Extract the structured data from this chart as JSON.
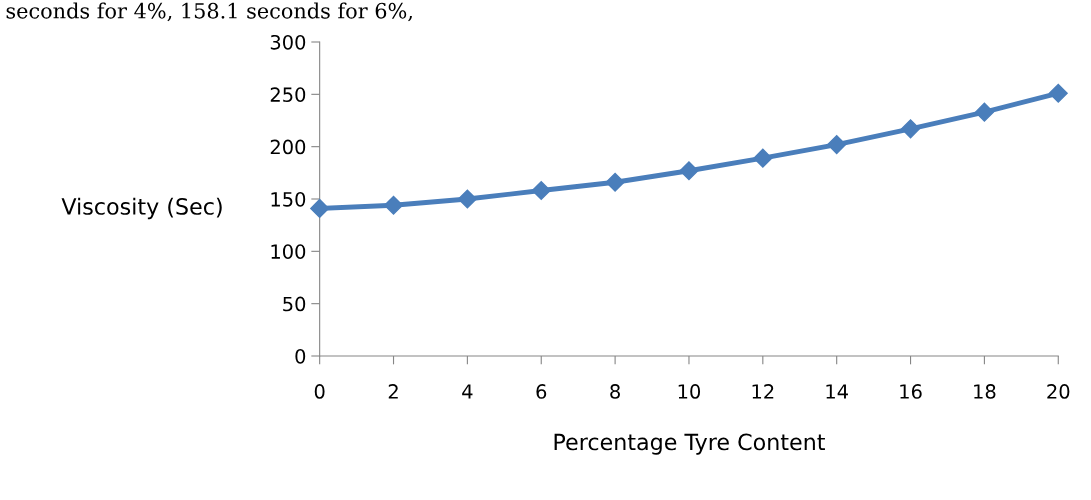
{
  "chart_data": {
    "type": "line",
    "xlabel": "Percentage Tyre Content",
    "ylabel": "Viscosity (Sec)",
    "annotations": [
      "seconds for 4%, 158.1 seconds for 6%,"
    ],
    "x": [
      0,
      2,
      4,
      6,
      8,
      10,
      12,
      14,
      16,
      18,
      20
    ],
    "series": [
      {
        "color": "#4a7ebb",
        "values": [
          141,
          144,
          150,
          158.1,
          166,
          177,
          189,
          202,
          217,
          233,
          251
        ]
      }
    ],
    "xlim": [
      0,
      20
    ],
    "xticks": [
      0,
      2,
      4,
      6,
      8,
      10,
      12,
      14,
      16,
      18,
      20
    ],
    "ylim": [
      0,
      300
    ],
    "yticks": [
      0,
      50,
      100,
      150,
      200,
      250,
      300
    ],
    "marker": "diamond",
    "line_style": "solid",
    "grid": false,
    "legend": false
  }
}
